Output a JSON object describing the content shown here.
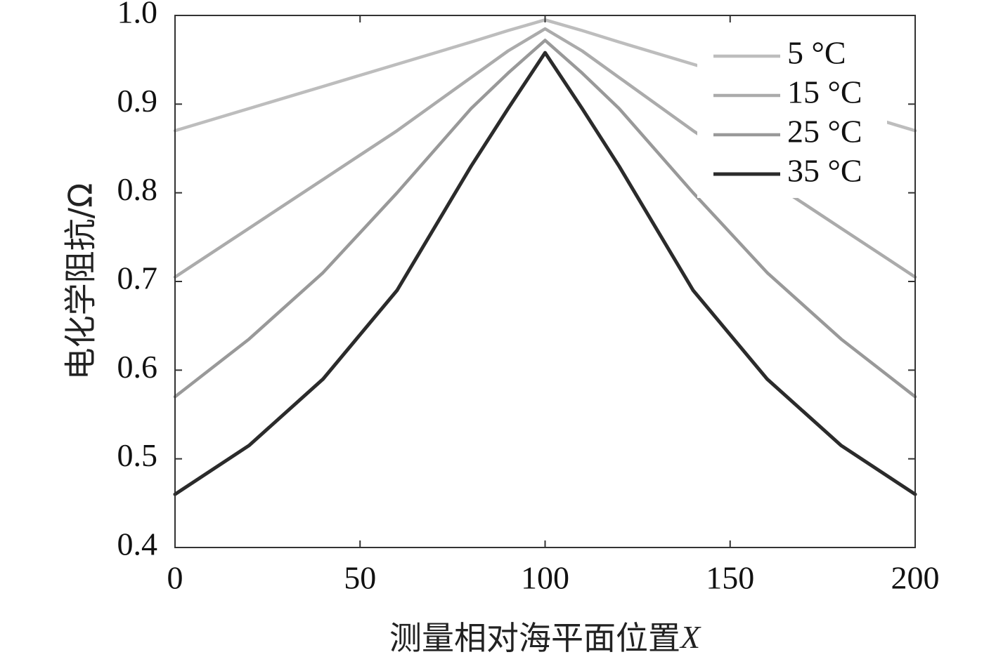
{
  "chart_data": {
    "type": "line",
    "title": "",
    "xlabel": "测量相对海平面位置",
    "xlabel_var": "X",
    "ylabel": "电化学阻抗/Ω",
    "xlim": [
      0,
      200
    ],
    "ylim": [
      0.4,
      1.0
    ],
    "x_ticks": [
      0,
      50,
      100,
      150,
      200
    ],
    "y_ticks": [
      0.4,
      0.5,
      0.6,
      0.7,
      0.8,
      0.9,
      1.0
    ],
    "x_tick_labels": [
      "0",
      "50",
      "100",
      "150",
      "200"
    ],
    "y_tick_labels": [
      "0.4",
      "0.5",
      "0.6",
      "0.7",
      "0.8",
      "0.9",
      "1.0"
    ],
    "grid": false,
    "legend_position": "top-right",
    "x": [
      0,
      20,
      40,
      60,
      80,
      90,
      100,
      110,
      120,
      140,
      160,
      180,
      200
    ],
    "series": [
      {
        "name": "5 °C",
        "color": "#bdbdbd",
        "values": [
          0.87,
          0.895,
          0.92,
          0.945,
          0.97,
          0.983,
          0.995,
          0.983,
          0.97,
          0.945,
          0.92,
          0.895,
          0.87
        ]
      },
      {
        "name": "15 °C",
        "color": "#ababab",
        "values": [
          0.705,
          0.76,
          0.815,
          0.87,
          0.93,
          0.96,
          0.985,
          0.96,
          0.93,
          0.87,
          0.815,
          0.76,
          0.705
        ]
      },
      {
        "name": "25 °C",
        "color": "#999999",
        "values": [
          0.57,
          0.635,
          0.71,
          0.8,
          0.895,
          0.935,
          0.972,
          0.935,
          0.895,
          0.8,
          0.71,
          0.635,
          0.57
        ]
      },
      {
        "name": "35 °C",
        "color": "#2b2b2b",
        "values": [
          0.46,
          0.515,
          0.59,
          0.69,
          0.83,
          0.895,
          0.958,
          0.895,
          0.83,
          0.69,
          0.59,
          0.515,
          0.46
        ]
      }
    ]
  }
}
